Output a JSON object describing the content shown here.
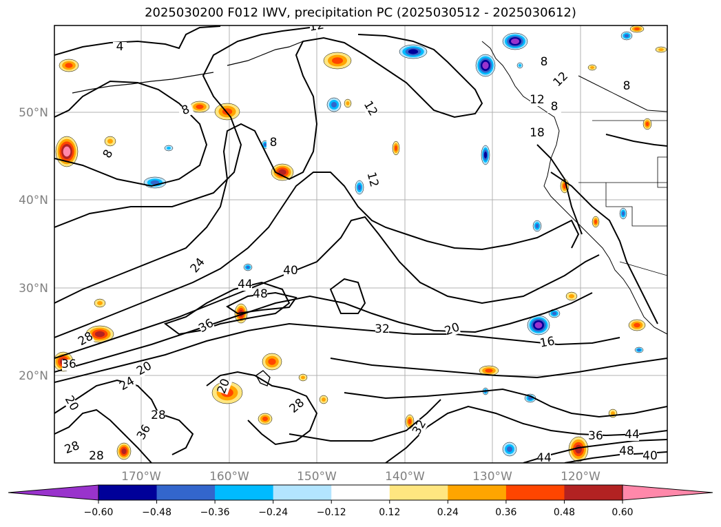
{
  "title": "2025030200 F012 IWV, precipitation PC (2025030512 - 2025030612)",
  "map": {
    "lat_labels": [
      "50°N",
      "40°N",
      "30°N",
      "20°N"
    ],
    "lon_labels": [
      "170°W",
      "160°W",
      "150°W",
      "140°W",
      "130°W",
      "120°W"
    ],
    "grid": true,
    "land_color": "#ffffff",
    "contour_labels": [
      "4",
      "12",
      "8",
      "8",
      "8",
      "12",
      "8",
      "12",
      "12",
      "18",
      "8",
      "8",
      "12",
      "24",
      "40",
      "44",
      "48",
      "36",
      "32",
      "20",
      "16",
      "28",
      "36",
      "20",
      "24",
      "20",
      "28",
      "28",
      "28",
      "36",
      "28",
      "32",
      "36",
      "44",
      "48",
      "40",
      "44",
      "20"
    ]
  },
  "colorbar": {
    "ticks": [
      "−0.60",
      "−0.48",
      "−0.36",
      "−0.24",
      "−0.12",
      "0.12",
      "0.24",
      "0.36",
      "0.48",
      "0.60"
    ],
    "colors": [
      "#9933cc",
      "#000099",
      "#3366cc",
      "#00bbff",
      "#b3e5ff",
      "#ffffff",
      "#ffe680",
      "#ffa500",
      "#ff4500",
      "#b22222",
      "#ff88aa"
    ]
  }
}
